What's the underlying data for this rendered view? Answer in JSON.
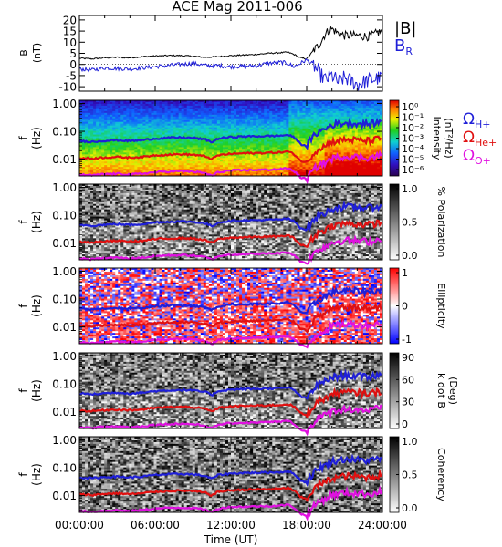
{
  "title": "ACE Mag 2011-006",
  "xlabel": "Time (UT)",
  "x_ticks": [
    "00:00:00",
    "06:00:00",
    "12:00:00",
    "18:00:00",
    "24:00:00"
  ],
  "chart_data": [
    {
      "type": "line",
      "panel": "B",
      "ylabel": "B",
      "yunit": "(nT)",
      "ylim": [
        -12,
        22
      ],
      "yticks": [
        "20",
        "15",
        "10",
        "5",
        "0",
        "-5",
        "-10"
      ],
      "x_hours": [
        0,
        1,
        2,
        3,
        4,
        5,
        6,
        7,
        8,
        9,
        10,
        11,
        12,
        13,
        14,
        15,
        16,
        16.5,
        17,
        17.5,
        18,
        18.5,
        19,
        19.5,
        20,
        20.5,
        21,
        22,
        23,
        23.9
      ],
      "series": [
        {
          "name": "|B|",
          "color": "#000000",
          "values": [
            2.8,
            2.5,
            3,
            3.2,
            3,
            3.5,
            3.8,
            4,
            4,
            3.7,
            3.2,
            3.5,
            4,
            4.2,
            4.5,
            5,
            5.3,
            5.5,
            4.5,
            3,
            2.5,
            6,
            9,
            14,
            16,
            14,
            13,
            13,
            12.5,
            15
          ]
        },
        {
          "name": "B_R",
          "color": "#1f1fd8",
          "values": [
            -2,
            -2.5,
            -1.5,
            -1.8,
            -2,
            -1.5,
            -1,
            -0.5,
            0,
            0.5,
            -0.5,
            -0.5,
            -1,
            -0.8,
            -0.5,
            0.5,
            1,
            0.5,
            -1,
            0.5,
            2,
            0,
            -4,
            -7,
            -5,
            -8,
            -6,
            -9,
            -7,
            -6
          ]
        }
      ]
    },
    {
      "type": "heatmap",
      "panel": "intensity",
      "ylabel": "f",
      "yunit": "(Hz)",
      "yticks": [
        "1.00",
        "0.10",
        "0.01"
      ],
      "colorbar": {
        "ticks": [
          "10⁰",
          "10⁻¹",
          "10⁻²",
          "10⁻³",
          "10⁻⁴",
          "10⁻⁵",
          "10⁻⁶"
        ],
        "label": "Intensity",
        "unit": "(nT²/Hz)"
      },
      "lines_legend": [
        {
          "symbol": "Ω",
          "sub": "H+",
          "color": "#1f1fd8"
        },
        {
          "symbol": "Ω",
          "sub": "He+",
          "color": "#e01010"
        },
        {
          "symbol": "Ω",
          "sub": "O+",
          "color": "#e010e0"
        }
      ]
    },
    {
      "type": "heatmap",
      "panel": "polarization",
      "ylabel": "f",
      "yunit": "(Hz)",
      "yticks": [
        "1.00",
        "0.10",
        "0.01"
      ],
      "colorbar": {
        "ticks": [
          "1.0",
          "0.5",
          "0.0"
        ],
        "label": "% Polarization",
        "unit": ""
      }
    },
    {
      "type": "heatmap",
      "panel": "ellipticity",
      "ylabel": "f",
      "yunit": "(Hz)",
      "yticks": [
        "1.00",
        "0.10",
        "0.01"
      ],
      "colorbar": {
        "ticks": [
          "1",
          "0",
          "-1"
        ],
        "label": "Ellipticity",
        "unit": ""
      }
    },
    {
      "type": "heatmap",
      "panel": "kdotb",
      "ylabel": "f",
      "yunit": "(Hz)",
      "yticks": [
        "1.00",
        "0.10",
        "0.01"
      ],
      "colorbar": {
        "ticks": [
          "90",
          "60",
          "30",
          "0"
        ],
        "label": "k dot B",
        "unit": "(Deg)"
      }
    },
    {
      "type": "heatmap",
      "panel": "coherency",
      "ylabel": "f",
      "yunit": "(Hz)",
      "yticks": [
        "1.00",
        "0.10",
        "0.01"
      ],
      "colorbar": {
        "ticks": [
          "1.0",
          "0.5",
          "0.0"
        ],
        "label": "Coherency",
        "unit": ""
      }
    }
  ],
  "gyrofrequency_lines": {
    "x_hours": [
      0,
      1,
      2,
      3,
      4,
      5,
      6,
      7,
      8,
      9,
      10,
      10.5,
      11,
      12,
      13,
      14,
      15,
      16,
      16.5,
      17,
      17.5,
      18,
      18.5,
      19,
      19.5,
      20,
      21,
      22,
      23,
      23.9
    ],
    "H+": [
      0.045,
      0.042,
      0.046,
      0.048,
      0.045,
      0.048,
      0.055,
      0.058,
      0.06,
      0.058,
      0.05,
      0.04,
      0.055,
      0.062,
      0.065,
      0.066,
      0.068,
      0.07,
      0.075,
      0.06,
      0.035,
      0.03,
      0.06,
      0.1,
      0.12,
      0.17,
      0.2,
      0.19,
      0.18,
      0.22
    ],
    "He+": [
      0.011,
      0.0105,
      0.0115,
      0.012,
      0.0113,
      0.012,
      0.0138,
      0.0145,
      0.015,
      0.0145,
      0.0125,
      0.01,
      0.0138,
      0.0155,
      0.0162,
      0.0165,
      0.017,
      0.0175,
      0.019,
      0.015,
      0.0088,
      0.0075,
      0.015,
      0.025,
      0.03,
      0.042,
      0.05,
      0.048,
      0.045,
      0.055
    ],
    "O+": [
      0.0028,
      0.0026,
      0.0029,
      0.003,
      0.0028,
      0.003,
      0.0034,
      0.0036,
      0.0037,
      0.0036,
      0.0031,
      0.0025,
      0.0034,
      0.0039,
      0.004,
      0.0041,
      0.0042,
      0.0044,
      0.0047,
      0.0037,
      0.0022,
      0.0019,
      0.0037,
      0.0062,
      0.0075,
      0.0105,
      0.0125,
      0.012,
      0.0112,
      0.0138
    ]
  }
}
